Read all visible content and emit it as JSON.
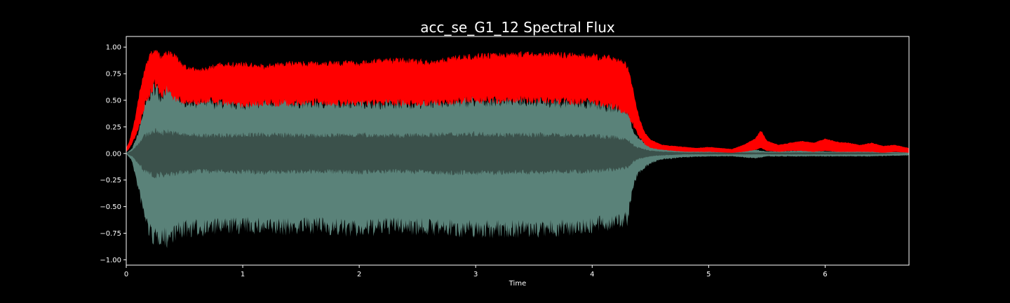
{
  "chart_data": {
    "type": "area",
    "title": "acc_se_G1_12 Spectral Flux",
    "xlabel": "Time",
    "ylabel": "",
    "xlim": [
      0,
      6.72
    ],
    "ylim": [
      -1.05,
      1.1
    ],
    "x_ticks": [
      {
        "value": 0,
        "label": "0"
      },
      {
        "value": 1,
        "label": "1"
      },
      {
        "value": 2,
        "label": "2"
      },
      {
        "value": 3,
        "label": "3"
      },
      {
        "value": 4,
        "label": "4"
      },
      {
        "value": 5,
        "label": "5"
      },
      {
        "value": 6,
        "label": "6"
      }
    ],
    "y_ticks": [
      {
        "value": 1.0,
        "label": "1.00"
      },
      {
        "value": 0.75,
        "label": "0.75"
      },
      {
        "value": 0.5,
        "label": "0.50"
      },
      {
        "value": 0.25,
        "label": "0.25"
      },
      {
        "value": 0.0,
        "label": "0.00"
      },
      {
        "value": -0.25,
        "label": "−0.25"
      },
      {
        "value": -0.5,
        "label": "−0.50"
      },
      {
        "value": -0.75,
        "label": "−0.75"
      },
      {
        "value": -1.0,
        "label": "−1.00"
      }
    ],
    "grid": false,
    "colors": {
      "background": "#000000",
      "flux": "#ff0000",
      "waveform_outer": "#5a8279",
      "waveform_inner": "#3b514b",
      "frame": "#ffffff"
    },
    "series": [
      {
        "kind": "flux",
        "x": [
          0.0,
          0.03,
          0.08,
          0.12,
          0.16,
          0.2,
          0.25,
          0.3,
          0.35,
          0.4,
          0.45,
          0.5,
          0.6,
          0.7,
          0.8,
          1.0,
          1.2,
          1.4,
          1.6,
          1.8,
          2.0,
          2.2,
          2.4,
          2.6,
          2.8,
          3.0,
          3.2,
          3.4,
          3.6,
          3.8,
          4.0,
          4.2,
          4.3,
          4.35,
          4.4,
          4.45,
          4.5,
          4.6,
          4.7,
          4.8,
          4.9,
          5.0,
          5.2,
          5.3,
          5.4,
          5.45,
          5.5,
          5.6,
          5.7,
          5.8,
          5.9,
          6.0,
          6.1,
          6.2,
          6.3,
          6.4,
          6.5,
          6.6,
          6.72
        ],
        "high": [
          0.05,
          0.12,
          0.35,
          0.62,
          0.82,
          0.95,
          1.0,
          0.92,
          0.98,
          0.96,
          0.9,
          0.84,
          0.8,
          0.82,
          0.86,
          0.86,
          0.84,
          0.87,
          0.87,
          0.88,
          0.87,
          0.9,
          0.9,
          0.88,
          0.92,
          0.94,
          0.95,
          0.96,
          0.96,
          0.95,
          0.94,
          0.92,
          0.85,
          0.62,
          0.35,
          0.2,
          0.13,
          0.08,
          0.07,
          0.06,
          0.05,
          0.06,
          0.04,
          0.08,
          0.14,
          0.22,
          0.12,
          0.08,
          0.1,
          0.12,
          0.1,
          0.14,
          0.11,
          0.1,
          0.08,
          0.1,
          0.07,
          0.08,
          0.05
        ],
        "low": [
          0.02,
          0.06,
          0.18,
          0.32,
          0.52,
          0.62,
          0.72,
          0.6,
          0.66,
          0.58,
          0.56,
          0.54,
          0.53,
          0.55,
          0.52,
          0.51,
          0.52,
          0.52,
          0.53,
          0.52,
          0.52,
          0.53,
          0.52,
          0.52,
          0.54,
          0.55,
          0.55,
          0.56,
          0.55,
          0.54,
          0.53,
          0.48,
          0.42,
          0.3,
          0.18,
          0.1,
          0.06,
          0.04,
          0.03,
          0.02,
          0.02,
          0.02,
          0.01,
          0.02,
          0.04,
          0.06,
          0.03,
          0.02,
          0.03,
          0.03,
          0.02,
          0.03,
          0.02,
          0.02,
          0.02,
          0.02,
          0.01,
          0.02,
          0.01
        ]
      },
      {
        "kind": "waveform",
        "x": [
          0.0,
          0.05,
          0.1,
          0.15,
          0.2,
          0.25,
          0.3,
          0.35,
          0.4,
          0.5,
          0.7,
          1.0,
          1.3,
          1.6,
          2.0,
          2.3,
          2.6,
          3.0,
          3.3,
          3.6,
          4.0,
          4.2,
          4.3,
          4.33,
          4.36,
          4.4,
          4.5,
          4.6,
          4.8,
          5.0,
          5.2,
          5.4,
          5.5,
          5.6,
          5.8,
          6.0,
          6.2,
          6.4,
          6.72
        ],
        "upper": [
          0.0,
          0.05,
          0.2,
          0.45,
          0.62,
          0.7,
          0.6,
          0.72,
          0.62,
          0.55,
          0.53,
          0.52,
          0.55,
          0.53,
          0.54,
          0.52,
          0.54,
          0.55,
          0.57,
          0.55,
          0.52,
          0.48,
          0.46,
          0.35,
          0.22,
          0.15,
          0.08,
          0.05,
          0.03,
          0.02,
          0.02,
          0.04,
          0.02,
          0.02,
          0.03,
          0.02,
          0.02,
          0.02,
          0.01
        ],
        "lower": [
          0.0,
          -0.08,
          -0.35,
          -0.62,
          -0.82,
          -0.9,
          -0.86,
          -0.9,
          -0.84,
          -0.8,
          -0.78,
          -0.76,
          -0.78,
          -0.76,
          -0.8,
          -0.76,
          -0.78,
          -0.8,
          -0.8,
          -0.8,
          -0.76,
          -0.72,
          -0.7,
          -0.5,
          -0.3,
          -0.2,
          -0.1,
          -0.06,
          -0.04,
          -0.03,
          -0.03,
          -0.05,
          -0.03,
          -0.03,
          -0.03,
          -0.03,
          -0.03,
          -0.03,
          -0.02
        ],
        "inner_upper": [
          0.0,
          0.03,
          0.1,
          0.18,
          0.22,
          0.24,
          0.22,
          0.24,
          0.22,
          0.2,
          0.19,
          0.2,
          0.2,
          0.19,
          0.2,
          0.19,
          0.2,
          0.21,
          0.2,
          0.2,
          0.19,
          0.17,
          0.15,
          0.12,
          0.08,
          0.06,
          0.03,
          0.02,
          0.01,
          0.01,
          0.01,
          0.01,
          0.01,
          0.01,
          0.01,
          0.01,
          0.01,
          0.01,
          0.0
        ],
        "inner_lower": [
          0.0,
          -0.03,
          -0.1,
          -0.18,
          -0.22,
          -0.24,
          -0.22,
          -0.24,
          -0.22,
          -0.2,
          -0.19,
          -0.2,
          -0.2,
          -0.19,
          -0.2,
          -0.19,
          -0.2,
          -0.21,
          -0.2,
          -0.2,
          -0.19,
          -0.17,
          -0.15,
          -0.12,
          -0.08,
          -0.06,
          -0.03,
          -0.02,
          -0.01,
          -0.01,
          -0.01,
          -0.01,
          -0.01,
          -0.01,
          -0.01,
          -0.01,
          -0.01,
          -0.01,
          0.0
        ]
      }
    ]
  }
}
